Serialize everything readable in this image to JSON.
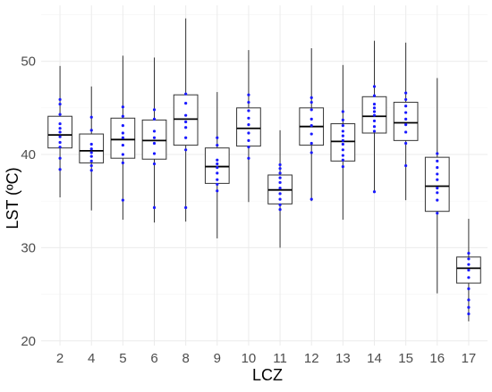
{
  "chart_data": {
    "type": "boxplot",
    "xlabel": "LCZ",
    "ylabel": "LST (ºC)",
    "categories": [
      "2",
      "4",
      "5",
      "6",
      "8",
      "9",
      "10",
      "11",
      "12",
      "13",
      "14",
      "15",
      "16",
      "17"
    ],
    "ylim": [
      19.5,
      56
    ],
    "yticks": [
      20,
      30,
      40,
      50
    ],
    "grid": true,
    "colors": {
      "points": "#1a1aff",
      "box": "#333333",
      "grid": "#ebebeb"
    },
    "boxes": [
      {
        "category": "2",
        "min": 35.4,
        "q1": 40.7,
        "median": 42.1,
        "q3": 44.1,
        "max": 49.5,
        "points": [
          38.4,
          39.6,
          40.8,
          41.3,
          41.9,
          42.4,
          42.8,
          43.3,
          44.3,
          45.4,
          45.9
        ]
      },
      {
        "category": "4",
        "min": 34.0,
        "q1": 39.1,
        "median": 40.4,
        "q3": 42.2,
        "max": 47.3,
        "points": [
          38.3,
          38.8,
          39.3,
          39.8,
          40.2,
          40.6,
          41.1,
          42.6,
          44.0
        ]
      },
      {
        "category": "5",
        "min": 33.0,
        "q1": 39.6,
        "median": 41.6,
        "q3": 43.9,
        "max": 50.6,
        "points": [
          35.1,
          39.1,
          40.0,
          41.0,
          41.8,
          42.3,
          43.1,
          44.1,
          45.1
        ]
      },
      {
        "category": "6",
        "min": 32.7,
        "q1": 39.5,
        "median": 41.5,
        "q3": 43.7,
        "max": 50.4,
        "points": [
          34.3,
          39.0,
          40.1,
          41.2,
          41.8,
          42.5,
          43.8,
          44.8
        ]
      },
      {
        "category": "8",
        "min": 32.8,
        "q1": 41.0,
        "median": 43.8,
        "q3": 46.4,
        "max": 54.6,
        "points": [
          34.3,
          40.5,
          41.8,
          42.9,
          43.5,
          44.2,
          45.5,
          46.5
        ]
      },
      {
        "category": "9",
        "min": 31.0,
        "q1": 36.9,
        "median": 38.7,
        "q3": 40.7,
        "max": 46.7,
        "points": [
          36.1,
          36.8,
          37.3,
          38.0,
          38.6,
          39.0,
          39.4,
          41.0,
          41.8
        ]
      },
      {
        "category": "10",
        "min": 34.9,
        "q1": 40.9,
        "median": 42.8,
        "q3": 45.0,
        "max": 51.2,
        "points": [
          39.6,
          40.8,
          41.5,
          42.3,
          43.2,
          43.9,
          44.7,
          45.6,
          46.4
        ]
      },
      {
        "category": "11",
        "min": 30.0,
        "q1": 34.7,
        "median": 36.2,
        "q3": 37.8,
        "max": 42.6,
        "points": [
          34.1,
          34.6,
          35.2,
          35.8,
          36.4,
          37.0,
          37.5,
          38.0,
          38.5,
          38.9
        ]
      },
      {
        "category": "12",
        "min": 35.0,
        "q1": 41.0,
        "median": 43.0,
        "q3": 45.0,
        "max": 51.4,
        "points": [
          35.2,
          40.2,
          41.2,
          42.2,
          43.1,
          43.8,
          44.8,
          45.6,
          46.1
        ]
      },
      {
        "category": "13",
        "min": 33.0,
        "q1": 39.3,
        "median": 41.4,
        "q3": 43.3,
        "max": 49.6,
        "points": [
          38.7,
          39.4,
          39.9,
          40.5,
          41.1,
          41.5,
          42.0,
          42.5,
          43.1,
          43.7,
          44.6
        ]
      },
      {
        "category": "14",
        "min": 36.1,
        "q1": 42.3,
        "median": 44.1,
        "q3": 46.2,
        "max": 52.2,
        "points": [
          36.0,
          42.5,
          43.0,
          43.6,
          44.2,
          44.6,
          45.0,
          45.4,
          46.3,
          47.3
        ]
      },
      {
        "category": "15",
        "min": 35.1,
        "q1": 41.5,
        "median": 43.4,
        "q3": 45.6,
        "max": 52.0,
        "points": [
          38.8,
          41.2,
          42.4,
          43.2,
          43.8,
          44.5,
          45.2,
          45.9,
          46.6
        ]
      },
      {
        "category": "16",
        "min": 25.1,
        "q1": 33.9,
        "median": 36.6,
        "q3": 39.7,
        "max": 48.2,
        "points": [
          33.7,
          35.1,
          35.9,
          36.4,
          37.3,
          37.9,
          38.6,
          39.3,
          40.1
        ]
      },
      {
        "category": "17",
        "min": 22.1,
        "q1": 26.2,
        "median": 27.8,
        "q3": 29.0,
        "max": 33.1,
        "points": [
          22.9,
          23.6,
          24.4,
          25.6,
          26.8,
          27.6,
          28.2,
          28.8,
          29.4
        ]
      }
    ]
  }
}
